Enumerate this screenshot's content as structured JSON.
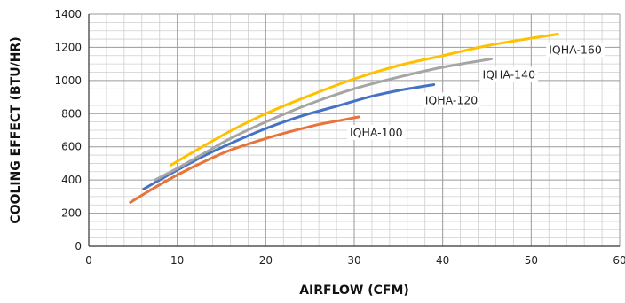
{
  "chart_data": {
    "type": "line",
    "title": "",
    "xlabel": "AIRFLOW (CFM)",
    "ylabel": "COOLING EFFECT (BTU/HR)",
    "xlim": [
      0,
      60
    ],
    "ylim": [
      0,
      1400
    ],
    "x_ticks": [
      "0",
      "10",
      "20",
      "30",
      "40",
      "50",
      "60"
    ],
    "y_ticks": [
      "0",
      "200",
      "400",
      "600",
      "800",
      "1000",
      "1200",
      "1400"
    ],
    "grid": true,
    "series": [
      {
        "name": "IQHA-100",
        "color": "#E8743B",
        "points": [
          [
            4.7,
            265
          ],
          [
            7,
            340
          ],
          [
            10,
            430
          ],
          [
            13,
            510
          ],
          [
            16,
            580
          ],
          [
            20,
            650
          ],
          [
            23,
            695
          ],
          [
            26,
            735
          ],
          [
            28,
            755
          ],
          [
            30.5,
            780
          ]
        ]
      },
      {
        "name": "IQHA-120",
        "color": "#4472C4",
        "points": [
          [
            6.2,
            345
          ],
          [
            8,
            400
          ],
          [
            10,
            460
          ],
          [
            13,
            545
          ],
          [
            16,
            620
          ],
          [
            20,
            710
          ],
          [
            24,
            785
          ],
          [
            28,
            845
          ],
          [
            32,
            905
          ],
          [
            35,
            940
          ],
          [
            39,
            975
          ]
        ]
      },
      {
        "name": "IQHA-140",
        "color": "#A5A5A5",
        "points": [
          [
            7.5,
            400
          ],
          [
            10,
            470
          ],
          [
            13,
            560
          ],
          [
            16,
            650
          ],
          [
            20,
            750
          ],
          [
            25,
            860
          ],
          [
            30,
            950
          ],
          [
            35,
            1020
          ],
          [
            40,
            1080
          ],
          [
            45.5,
            1130
          ]
        ]
      },
      {
        "name": "IQHA-160",
        "color": "#FFC000",
        "points": [
          [
            9.3,
            490
          ],
          [
            12,
            575
          ],
          [
            16,
            695
          ],
          [
            20,
            800
          ],
          [
            25,
            910
          ],
          [
            30,
            1010
          ],
          [
            35,
            1090
          ],
          [
            40,
            1150
          ],
          [
            45,
            1210
          ],
          [
            50,
            1255
          ],
          [
            53,
            1280
          ]
        ]
      }
    ]
  }
}
